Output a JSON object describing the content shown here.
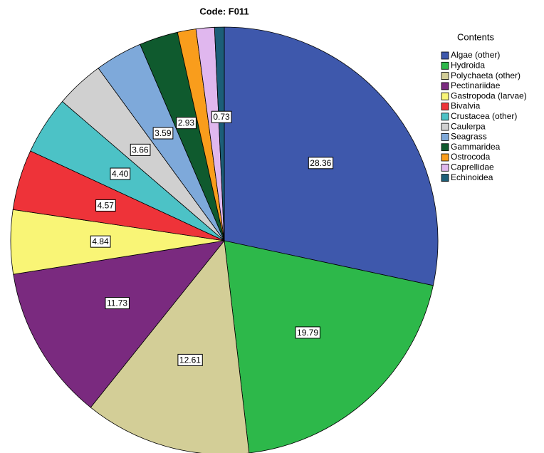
{
  "chart_data": {
    "type": "pie",
    "title": "Code: F011",
    "legend_title": "Contents",
    "legend": "right",
    "categories": [
      "Algae (other)",
      "Hydroida",
      "Polychaeta (other)",
      "Pectinariidae",
      "Gastropoda (larvae)",
      "Bivalvia",
      "Crustacea (other)",
      "Caulerpa",
      "Seagrass",
      "Gammaridea",
      "Ostrocoda",
      "Caprellidae",
      "Echinoidea"
    ],
    "values": [
      28.36,
      19.79,
      12.61,
      11.73,
      4.84,
      4.57,
      4.4,
      3.66,
      3.59,
      2.93,
      1.4,
      1.39,
      0.73
    ],
    "value_labels": [
      "28.36",
      "19.79",
      "12.61",
      "11.73",
      "4.84",
      "4.57",
      "4.40",
      "3.66",
      "3.59",
      "2.93",
      null,
      null,
      "0.73"
    ],
    "colors": [
      "#3e58ac",
      "#2db84a",
      "#d3ce97",
      "#7a2a7f",
      "#f9f576",
      "#ee3339",
      "#4cc2c6",
      "#d0d0d0",
      "#7ea9da",
      "#0f5a2e",
      "#f99d1c",
      "#e0b7ee",
      "#1c5e78"
    ]
  }
}
